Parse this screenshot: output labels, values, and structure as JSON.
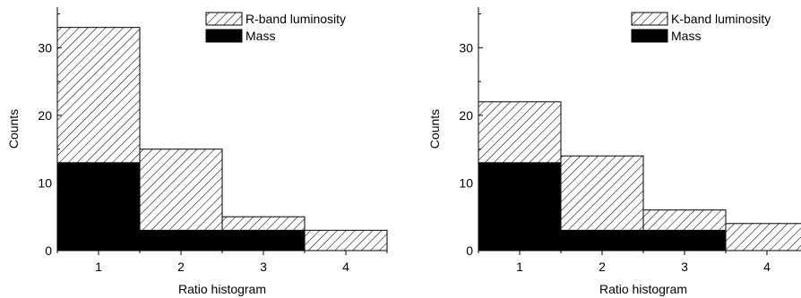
{
  "chart_data": [
    {
      "type": "bar",
      "xlabel": "Ratio histogram",
      "ylabel": "Counts",
      "categories": [
        "1",
        "2",
        "3",
        "4"
      ],
      "xticks": [
        "1",
        "2",
        "3",
        "4"
      ],
      "yticks": [
        "0",
        "10",
        "20",
        "30"
      ],
      "xlim": [
        0.5,
        4.5
      ],
      "ylim": [
        0,
        36
      ],
      "legend_position": "top-right",
      "series": [
        {
          "name": "R-band luminosity",
          "style": "hatched",
          "values": [
            33,
            15,
            5,
            3
          ]
        },
        {
          "name": "Mass",
          "style": "solid",
          "color": "#000000",
          "values": [
            13,
            3,
            3,
            0
          ]
        }
      ]
    },
    {
      "type": "bar",
      "xlabel": "Ratio histogram",
      "ylabel": "Counts",
      "categories": [
        "1",
        "2",
        "3",
        "4"
      ],
      "xticks": [
        "1",
        "2",
        "3",
        "4"
      ],
      "yticks": [
        "0",
        "10",
        "20",
        "30"
      ],
      "xlim": [
        0.5,
        4.5
      ],
      "ylim": [
        0,
        36
      ],
      "legend_position": "top-right",
      "series": [
        {
          "name": "K-band luminosity",
          "style": "hatched",
          "values": [
            22,
            14,
            6,
            4
          ]
        },
        {
          "name": "Mass",
          "style": "solid",
          "color": "#000000",
          "values": [
            13,
            3,
            3,
            0
          ]
        }
      ]
    }
  ]
}
